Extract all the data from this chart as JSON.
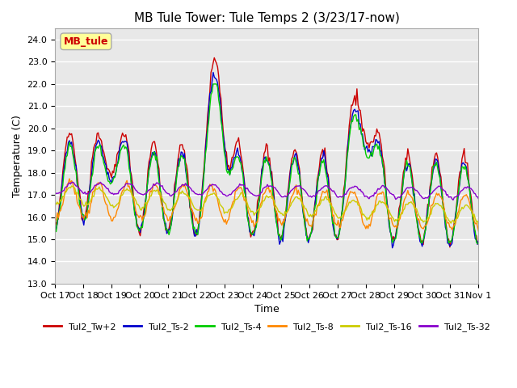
{
  "title": "MB Tule Tower: Tule Temps 2 (3/23/17-now)",
  "xlabel": "Time",
  "ylabel": "Temperature (C)",
  "ylim": [
    13.0,
    24.5
  ],
  "yticks": [
    13.0,
    14.0,
    15.0,
    16.0,
    17.0,
    18.0,
    19.0,
    20.0,
    21.0,
    22.0,
    23.0,
    24.0
  ],
  "legend_label": "MB_tule",
  "series_labels": [
    "Tul2_Tw+2",
    "Tul2_Ts-2",
    "Tul2_Ts-4",
    "Tul2_Ts-8",
    "Tul2_Ts-16",
    "Tul2_Ts-32"
  ],
  "series_colors": [
    "#cc0000",
    "#0000cc",
    "#00cc00",
    "#ff8800",
    "#cccc00",
    "#8800cc"
  ],
  "xtick_labels": [
    "Oct 17",
    "Oct 18",
    "Oct 19",
    "Oct 20",
    "Oct 21",
    "Oct 22",
    "Oct 23",
    "Oct 24",
    "Oct 25",
    "Oct 26",
    "Oct 27",
    "Oct 28",
    "Oct 29",
    "Oct 30",
    "Oct 31",
    "Nov 1"
  ],
  "background_color": "#ffffff",
  "plot_bg_color": "#e8e8e8",
  "grid_color": "#ffffff",
  "title_fontsize": 11,
  "axis_label_fontsize": 9,
  "tick_fontsize": 8
}
